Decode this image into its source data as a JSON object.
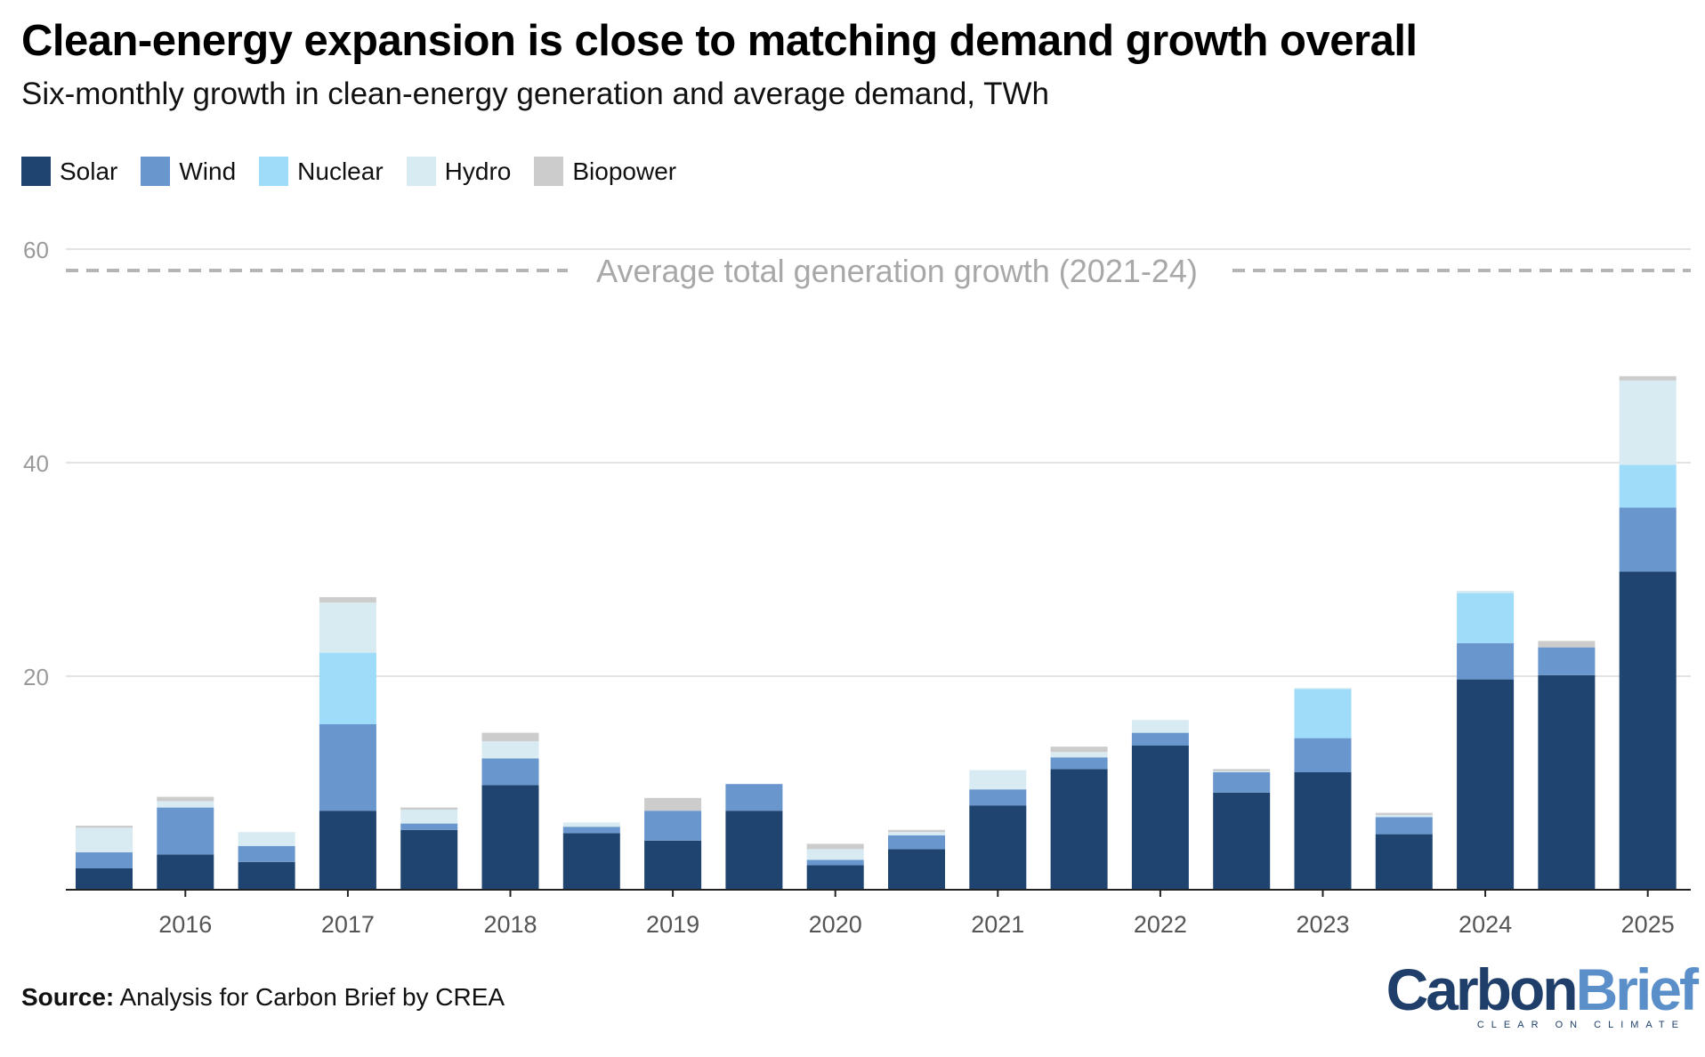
{
  "title": "Clean-energy expansion is close to matching demand growth overall",
  "subtitle": "Six-monthly growth in clean-energy generation and average demand, TWh",
  "source_label": "Source:",
  "source_text": "Analysis for Carbon Brief by CREA",
  "logo": {
    "carbon": "Carbon",
    "brief": "Brief",
    "tagline": "CLEAR ON CLIMATE"
  },
  "legend": [
    {
      "name": "Solar",
      "color": "#1f4470"
    },
    {
      "name": "Wind",
      "color": "#6896cd"
    },
    {
      "name": "Nuclear",
      "color": "#9fdcfa"
    },
    {
      "name": "Hydro",
      "color": "#d8ebf3"
    },
    {
      "name": "Biopower",
      "color": "#cccccc"
    }
  ],
  "chart_data": {
    "type": "bar",
    "stacked": true,
    "title": "Clean-energy expansion is close to matching demand growth overall",
    "ylabel": "TWh",
    "ylim": [
      0,
      60
    ],
    "yticks": [
      20,
      40,
      60
    ],
    "x_tick_labels": [
      "2016",
      "2017",
      "2018",
      "2019",
      "2020",
      "2021",
      "2022",
      "2023",
      "2024",
      "2025"
    ],
    "categories": [
      "2015 H2",
      "2016 H1",
      "2016 H2",
      "2017 H1",
      "2017 H2",
      "2018 H1",
      "2018 H2",
      "2019 H1",
      "2019 H2",
      "2020 H1",
      "2020 H2",
      "2021 H1",
      "2021 H2",
      "2022 H1",
      "2022 H2",
      "2023 H1",
      "2023 H2",
      "2024 H1",
      "2024 H2",
      "2025 H1"
    ],
    "series": [
      {
        "name": "Solar",
        "color": "#1f4470",
        "values": [
          2.0,
          3.3,
          2.6,
          7.4,
          5.6,
          9.8,
          5.3,
          4.6,
          7.4,
          2.3,
          3.8,
          7.9,
          11.3,
          13.5,
          9.1,
          11.0,
          5.2,
          19.7,
          20.1,
          29.8
        ]
      },
      {
        "name": "Wind",
        "color": "#6896cd",
        "values": [
          1.5,
          4.4,
          1.5,
          8.1,
          0.6,
          2.5,
          0.6,
          2.8,
          2.5,
          0.5,
          1.3,
          1.5,
          1.1,
          1.2,
          1.9,
          3.2,
          1.6,
          3.4,
          2.6,
          6.0
        ]
      },
      {
        "name": "Nuclear",
        "color": "#9fdcfa",
        "values": [
          0,
          0,
          0,
          6.7,
          0,
          0,
          0,
          0,
          0,
          0,
          0,
          0,
          0,
          0,
          0,
          4.6,
          0,
          4.7,
          0,
          4.0
        ]
      },
      {
        "name": "Hydro",
        "color": "#d8ebf3",
        "values": [
          2.3,
          0.6,
          1.3,
          4.7,
          1.3,
          1.6,
          0.4,
          0,
          0,
          1.0,
          0.3,
          1.8,
          0.5,
          1.2,
          0.1,
          0.1,
          0.2,
          0.2,
          0,
          7.9
        ]
      },
      {
        "name": "Biopower",
        "color": "#cccccc",
        "values": [
          0.2,
          0.4,
          0,
          0.5,
          0.2,
          0.8,
          0,
          1.2,
          0,
          0.5,
          0.2,
          0,
          0.5,
          0,
          0.2,
          0,
          0.2,
          0,
          0.6,
          0.4
        ]
      }
    ],
    "reference_line": {
      "label": "Average total generation growth (2021-24)",
      "value": 58
    }
  }
}
